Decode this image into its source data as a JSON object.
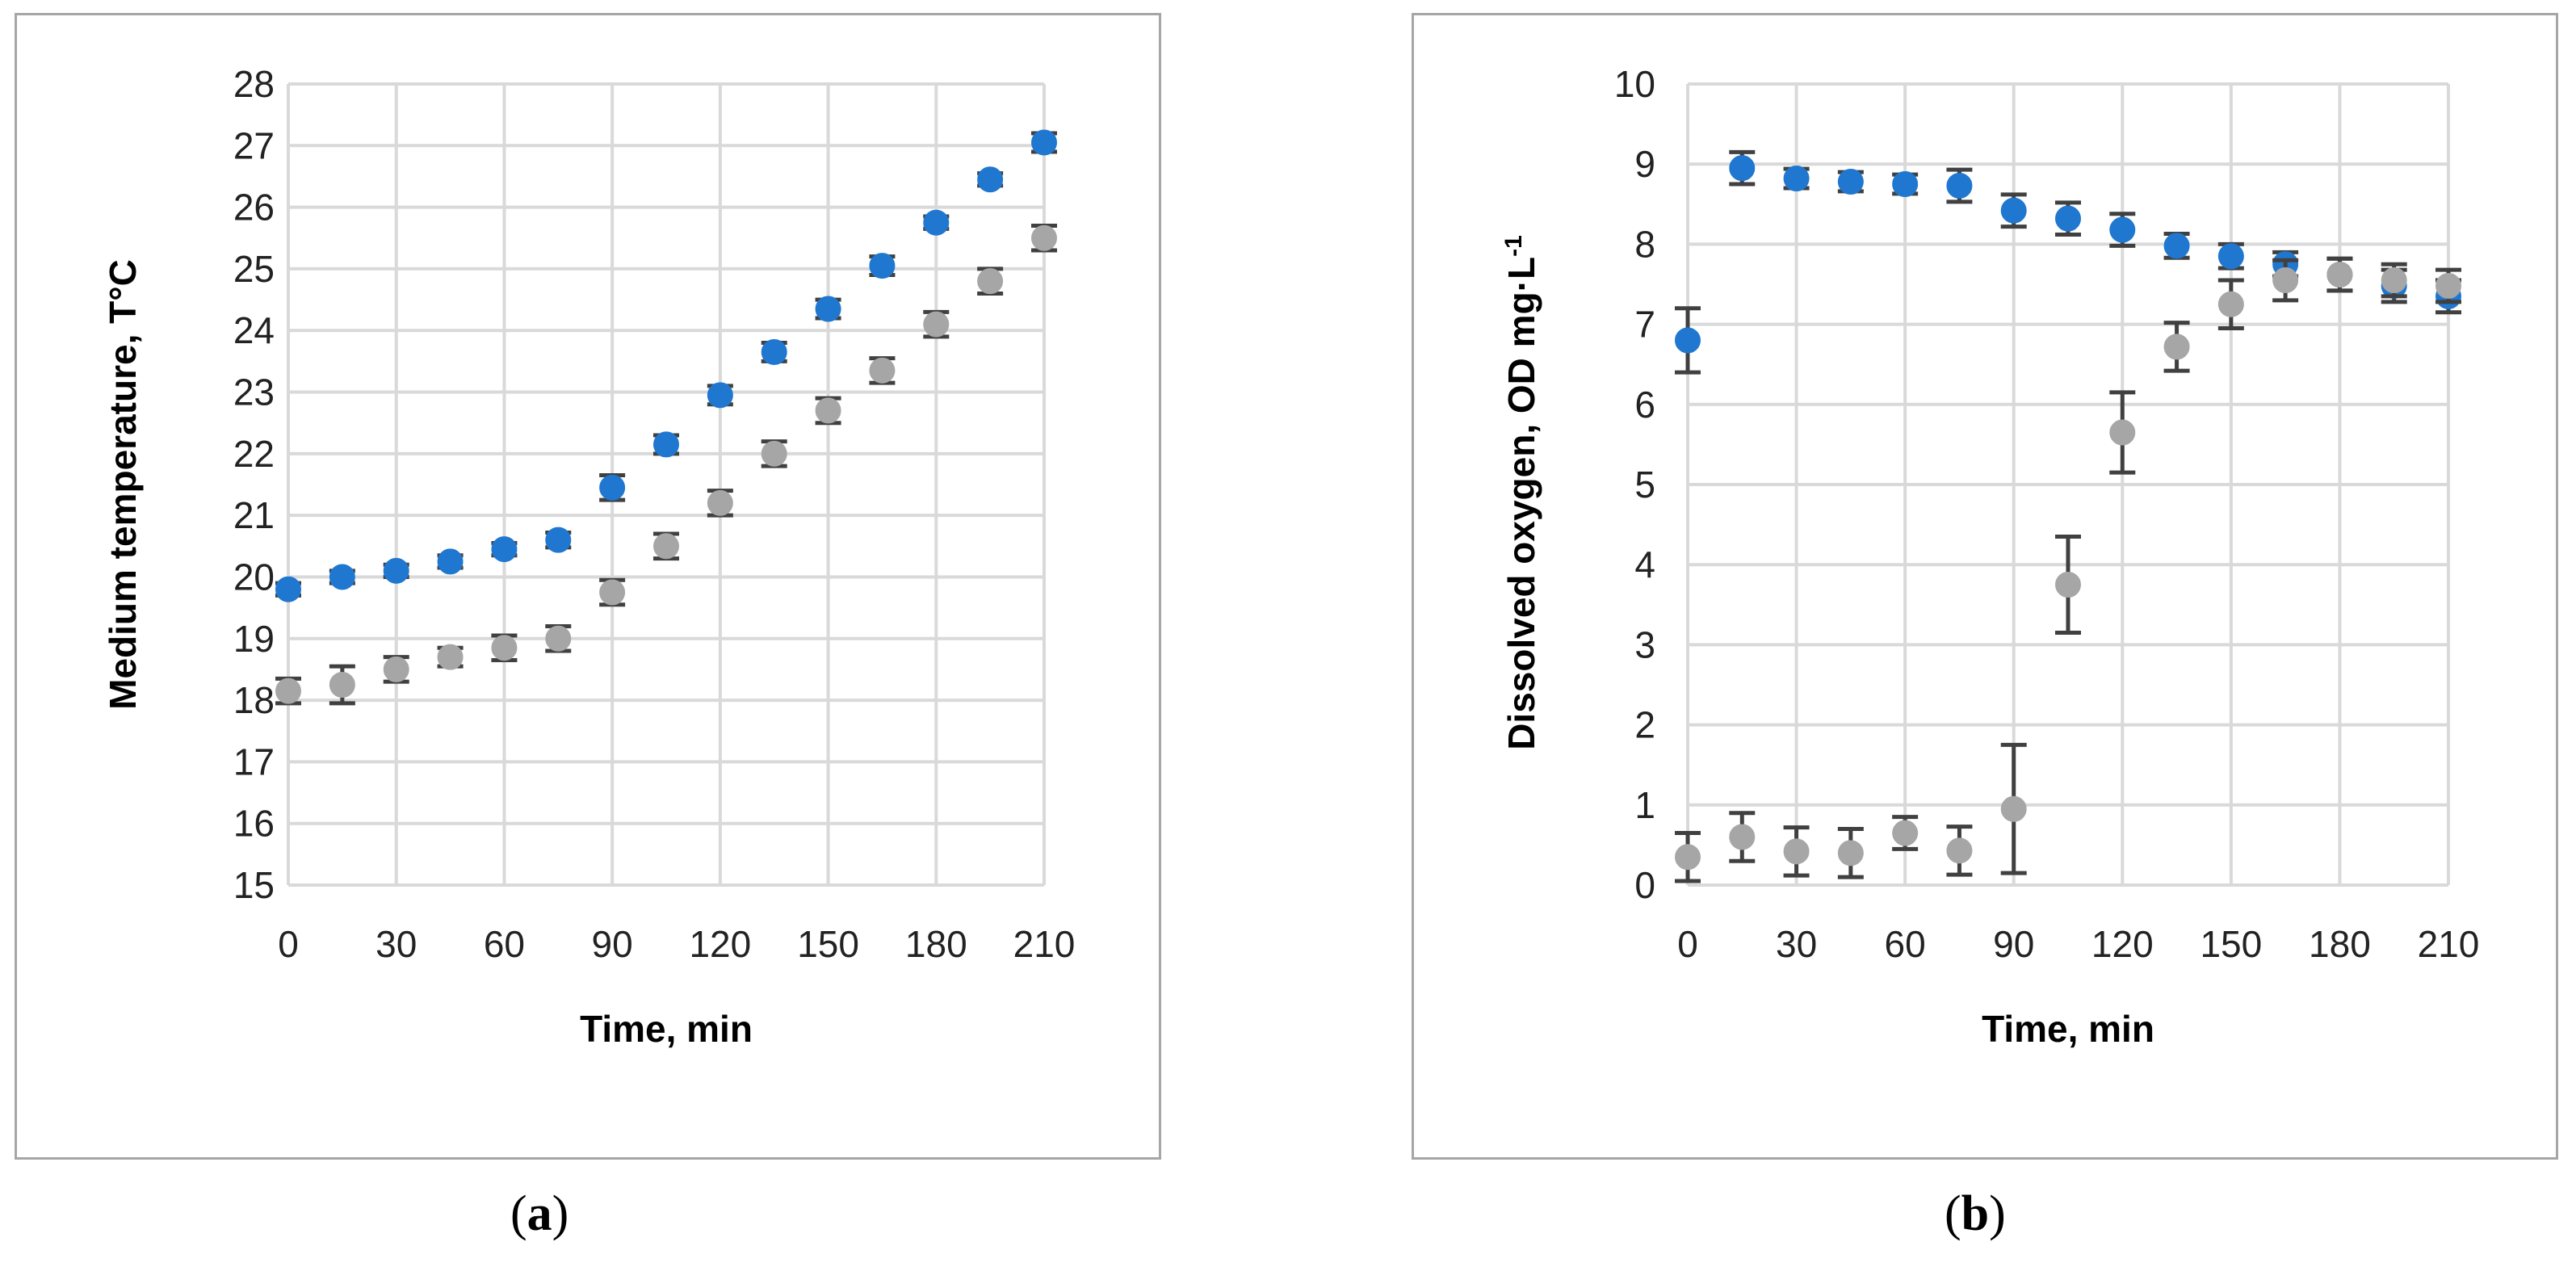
{
  "panels": {
    "a": {
      "label_open": "(",
      "label_letter": "a",
      "label_close": ")"
    },
    "b": {
      "label_open": "(",
      "label_letter": "b",
      "label_close": ")"
    }
  },
  "colors": {
    "series_blue": "#1f77d0",
    "series_grey": "#a6a6a6",
    "grid": "#d9d9d9",
    "error_bar": "#404040",
    "frame": "#a6a6a6"
  },
  "chart_data": [
    {
      "type": "scatter",
      "xlabel": "Time, min",
      "ylabel": "Medium temperature, T°C",
      "xlim": [
        0,
        210
      ],
      "ylim": [
        15,
        28
      ],
      "xticks": [
        0,
        30,
        60,
        90,
        120,
        150,
        180,
        210
      ],
      "yticks": [
        15,
        16,
        17,
        18,
        19,
        20,
        21,
        22,
        23,
        24,
        25,
        26,
        27,
        28
      ],
      "grid": true,
      "legend": "none",
      "x": [
        0,
        15,
        30,
        45,
        60,
        75,
        90,
        105,
        120,
        135,
        150,
        165,
        180,
        195,
        210
      ],
      "series": [
        {
          "color": "#1f77d0",
          "values": [
            19.8,
            20.0,
            20.1,
            20.25,
            20.45,
            20.6,
            21.45,
            22.15,
            22.95,
            23.65,
            24.35,
            25.05,
            25.75,
            26.45,
            27.05
          ],
          "errors": [
            0.1,
            0.1,
            0.1,
            0.1,
            0.1,
            0.12,
            0.2,
            0.15,
            0.15,
            0.15,
            0.15,
            0.15,
            0.1,
            0.1,
            0.15
          ]
        },
        {
          "color": "#a6a6a6",
          "values": [
            18.15,
            18.25,
            18.5,
            18.7,
            18.85,
            19.0,
            19.75,
            20.5,
            21.2,
            22.0,
            22.7,
            23.35,
            24.1,
            24.8,
            25.5
          ],
          "errors": [
            0.2,
            0.3,
            0.2,
            0.15,
            0.2,
            0.2,
            0.2,
            0.2,
            0.2,
            0.2,
            0.2,
            0.2,
            0.2,
            0.2,
            0.2
          ]
        }
      ]
    },
    {
      "type": "scatter",
      "xlabel": "Time, min",
      "ylabel": "Dissolved oxygen, OD mg·L",
      "ylabel_superscript": "-1",
      "xlim": [
        0,
        210
      ],
      "ylim": [
        0,
        10
      ],
      "xticks": [
        0,
        30,
        60,
        90,
        120,
        150,
        180,
        210
      ],
      "yticks": [
        0,
        1,
        2,
        3,
        4,
        5,
        6,
        7,
        8,
        9,
        10
      ],
      "grid": true,
      "legend": "none",
      "x": [
        0,
        15,
        30,
        45,
        60,
        75,
        90,
        105,
        120,
        135,
        150,
        165,
        180,
        195,
        210
      ],
      "series": [
        {
          "color": "#1f77d0",
          "values": [
            6.8,
            8.95,
            8.82,
            8.78,
            8.75,
            8.73,
            8.42,
            8.32,
            8.18,
            7.98,
            7.85,
            7.75,
            7.62,
            7.48,
            7.35
          ],
          "errors": [
            0.4,
            0.2,
            0.12,
            0.12,
            0.12,
            0.2,
            0.2,
            0.2,
            0.2,
            0.15,
            0.15,
            0.15,
            0.2,
            0.2,
            0.2
          ]
        },
        {
          "color": "#a6a6a6",
          "values": [
            0.35,
            0.6,
            0.42,
            0.4,
            0.65,
            0.43,
            0.95,
            3.75,
            5.65,
            6.72,
            7.25,
            7.55,
            7.62,
            7.55,
            7.48
          ],
          "errors": [
            0.3,
            0.3,
            0.3,
            0.3,
            0.2,
            0.3,
            0.8,
            0.6,
            0.5,
            0.3,
            0.3,
            0.25,
            0.2,
            0.2,
            0.2
          ]
        }
      ]
    }
  ]
}
